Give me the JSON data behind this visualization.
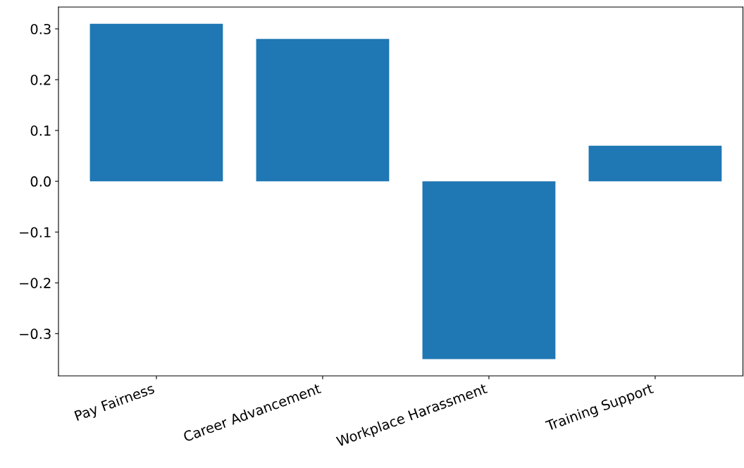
{
  "chart_data": {
    "type": "bar",
    "categories": [
      "Pay Fairness",
      "Career Advancement",
      "Workplace Harassment",
      "Training Support"
    ],
    "values": [
      0.31,
      0.28,
      -0.35,
      0.07
    ],
    "color": "#1f77b4",
    "ylim": [
      -0.383,
      0.343
    ],
    "yticks": [
      {
        "value": -0.3,
        "label": "−0.3"
      },
      {
        "value": -0.2,
        "label": "−0.2"
      },
      {
        "value": -0.1,
        "label": "−0.1"
      },
      {
        "value": 0.0,
        "label": "0.0"
      },
      0.1,
      0.2,
      0.3
    ],
    "grid": false
  }
}
